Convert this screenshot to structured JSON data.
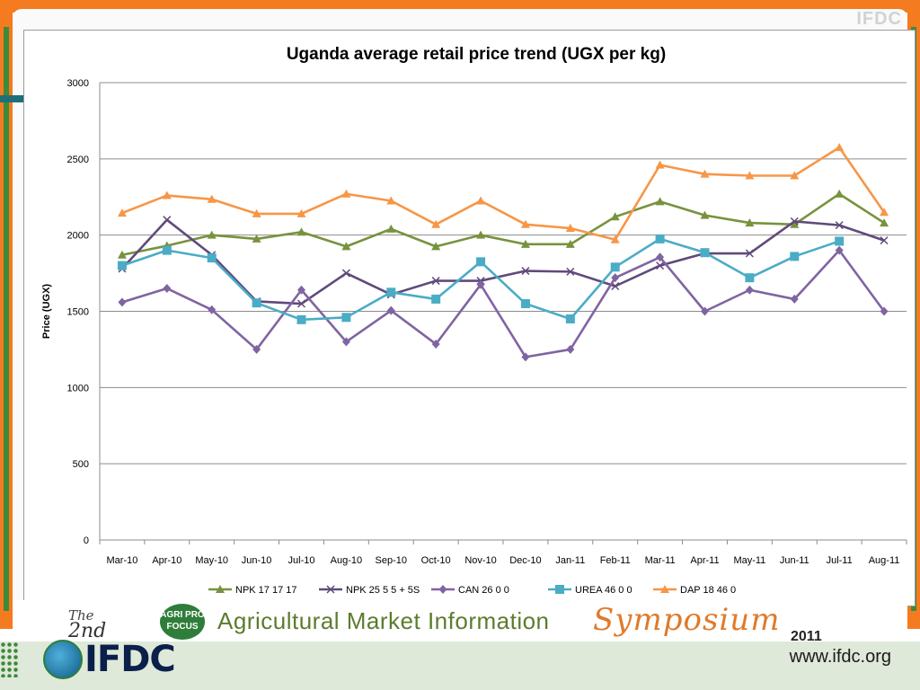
{
  "watermark": "IFDC",
  "chart_data": {
    "type": "line",
    "title": "Uganda average retail price trend (UGX per kg)",
    "xlabel": "",
    "ylabel": "Price (UGX)",
    "ylim": [
      0,
      3000
    ],
    "yticks": [
      0,
      500,
      1000,
      1500,
      2000,
      2500,
      3000
    ],
    "grid": true,
    "legend": "bottom",
    "categories": [
      "Mar-10",
      "Apr-10",
      "May-10",
      "Jun-10",
      "Jul-10",
      "Aug-10",
      "Sep-10",
      "Oct-10",
      "Nov-10",
      "Dec-10",
      "Jan-11",
      "Feb-11",
      "Mar-11",
      "Apr-11",
      "May-11",
      "Jun-11",
      "Jul-11",
      "Aug-11"
    ],
    "series": [
      {
        "name": "NPK 17 17 17",
        "color": "#77933c",
        "marker": "triangle",
        "values": [
          1870,
          1930,
          2000,
          1975,
          2020,
          1925,
          2040,
          1925,
          2000,
          1940,
          1940,
          2120,
          2220,
          2130,
          2080,
          2070,
          2270,
          2080
        ]
      },
      {
        "name": "NPK 25 5 5 + 5S",
        "color": "#604a7b",
        "marker": "x",
        "values": [
          1780,
          2100,
          1870,
          1565,
          1550,
          1750,
          1610,
          1700,
          1700,
          1765,
          1760,
          1665,
          1800,
          1880,
          1880,
          2090,
          2065,
          1965
        ]
      },
      {
        "name": "CAN 26 0 0",
        "color": "#8064a2",
        "marker": "diamond",
        "values": [
          1560,
          1650,
          1510,
          1250,
          1640,
          1300,
          1505,
          1285,
          1675,
          1200,
          1250,
          1720,
          1855,
          1500,
          1640,
          1580,
          1900,
          1500
        ]
      },
      {
        "name": "UREA 46 0 0",
        "color": "#4bacc6",
        "marker": "square",
        "values": [
          1800,
          1900,
          1850,
          1555,
          1445,
          1460,
          1625,
          1580,
          1825,
          1550,
          1450,
          1790,
          1975,
          1885,
          1720,
          1860,
          1960,
          null
        ]
      },
      {
        "name": "DAP 18 46 0",
        "color": "#f79646",
        "marker": "triangle",
        "values": [
          2145,
          2260,
          2235,
          2140,
          2140,
          2270,
          2225,
          2070,
          2225,
          2070,
          2045,
          1970,
          2460,
          2400,
          2390,
          2390,
          2575,
          2150
        ]
      }
    ]
  },
  "banner": {
    "the": "The",
    "edition": "2nd",
    "agri_logo": "AGRI PRO FOCUS",
    "event": "Agricultural Market Information",
    "symposium": "Symposium",
    "year": "2011"
  },
  "footer": {
    "logo_text": "IFDC",
    "url": "www.ifdc.org"
  }
}
